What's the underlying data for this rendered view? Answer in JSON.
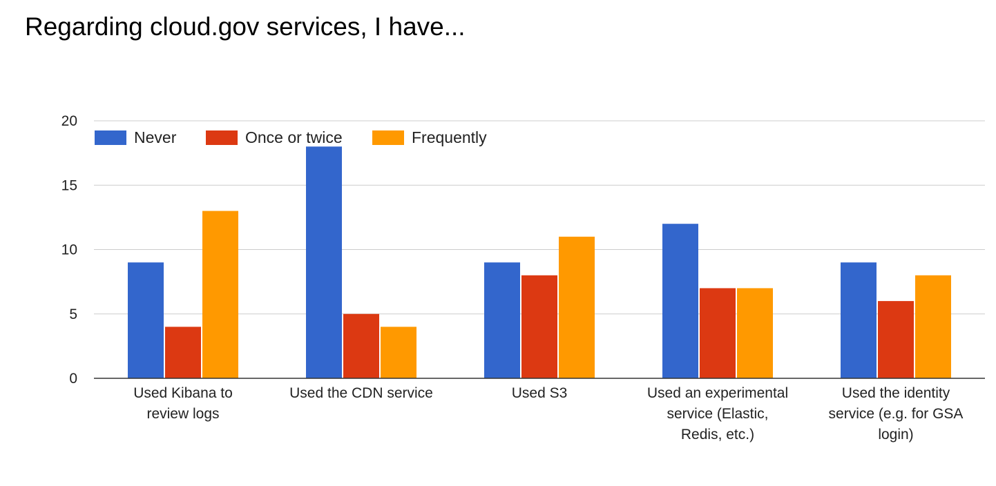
{
  "chart_data": {
    "type": "bar",
    "title": "Regarding cloud.gov services, I have...",
    "xlabel": "",
    "ylabel": "",
    "ylim": [
      0,
      20
    ],
    "yticks": [
      0,
      5,
      10,
      15,
      20
    ],
    "categories": [
      [
        "Used Kibana to",
        "review logs"
      ],
      [
        "Used the CDN service"
      ],
      [
        "Used S3"
      ],
      [
        "Used an experimental",
        "service (Elastic,",
        "Redis, etc.)"
      ],
      [
        "Used the identity",
        "service (e.g. for GSA",
        "login)"
      ]
    ],
    "series": [
      {
        "name": "Never",
        "color": "#3366cc",
        "values": [
          9,
          18,
          9,
          12,
          9
        ]
      },
      {
        "name": "Once or twice",
        "color": "#dc3912",
        "values": [
          4,
          5,
          8,
          7,
          6
        ]
      },
      {
        "name": "Frequently",
        "color": "#ff9900",
        "values": [
          13,
          4,
          11,
          7,
          8
        ]
      }
    ],
    "legend_position": "top-left",
    "grid": true
  }
}
